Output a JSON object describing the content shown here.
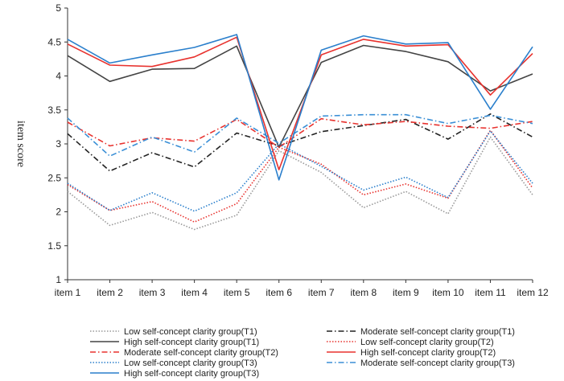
{
  "chart_data": {
    "type": "line",
    "title": "",
    "xlabel": "",
    "ylabel": "item score",
    "ylim": [
      1,
      5
    ],
    "yticks": [
      "1",
      "1.5",
      "2",
      "2.5",
      "3",
      "3.5",
      "4",
      "4.5",
      "5"
    ],
    "categories": [
      "item 1",
      "item 2",
      "item 3",
      "item 4",
      "item 5",
      "item 6",
      "item 7",
      "item 8",
      "item 9",
      "item 10",
      "item 11",
      "item 12"
    ],
    "grid": false,
    "legend_position": "bottom",
    "series": [
      {
        "name": "Low self-concept clarity group(T1)",
        "color": "#999999",
        "dash": "dotted",
        "values": [
          2.3,
          1.8,
          1.99,
          1.74,
          1.95,
          2.9,
          2.58,
          2.06,
          2.3,
          1.97,
          3.1,
          2.25
        ]
      },
      {
        "name": "Moderate self-concept clarity group(T1)",
        "color": "#222222",
        "dash": "dashdot",
        "values": [
          3.15,
          2.6,
          2.87,
          2.66,
          3.16,
          2.97,
          3.18,
          3.27,
          3.36,
          3.07,
          3.44,
          3.1
        ]
      },
      {
        "name": "High self-concept clarity group(T1)",
        "color": "#444444",
        "dash": "solid",
        "values": [
          4.3,
          3.92,
          4.1,
          4.11,
          4.44,
          2.95,
          4.2,
          4.45,
          4.36,
          4.21,
          3.78,
          4.03
        ]
      },
      {
        "name": "Low self-concept clarity group(T2)",
        "color": "#e8322e",
        "dash": "dotted",
        "values": [
          2.4,
          2.02,
          2.15,
          1.85,
          2.12,
          2.95,
          2.7,
          2.25,
          2.41,
          2.2,
          3.2,
          2.35
        ]
      },
      {
        "name": "Moderate self-concept clarity group(T2)",
        "color": "#e8322e",
        "dash": "dashdot",
        "values": [
          3.32,
          2.97,
          3.09,
          3.04,
          3.36,
          2.95,
          3.37,
          3.28,
          3.33,
          3.26,
          3.23,
          3.33
        ]
      },
      {
        "name": "High self-concept clarity group(T2)",
        "color": "#e8322e",
        "dash": "solid",
        "values": [
          4.47,
          4.16,
          4.14,
          4.28,
          4.57,
          2.62,
          4.31,
          4.54,
          4.44,
          4.46,
          3.72,
          4.33
        ]
      },
      {
        "name": "Low self-concept clarity group(T3)",
        "color": "#2a7fcc",
        "dash": "dotted",
        "values": [
          2.42,
          2.02,
          2.28,
          2.01,
          2.28,
          3.0,
          2.67,
          2.32,
          2.51,
          2.21,
          3.19,
          2.42
        ]
      },
      {
        "name": "Moderate self-concept clarity group(T3)",
        "color": "#3a8fd6",
        "dash": "dashdot",
        "values": [
          3.38,
          2.82,
          3.1,
          2.88,
          3.38,
          3.01,
          3.41,
          3.43,
          3.43,
          3.3,
          3.42,
          3.3
        ]
      },
      {
        "name": "High self-concept clarity group(T3)",
        "color": "#2a7fcc",
        "dash": "solid",
        "values": [
          4.54,
          4.19,
          4.31,
          4.42,
          4.61,
          2.47,
          4.38,
          4.59,
          4.47,
          4.49,
          3.51,
          4.43
        ]
      }
    ]
  }
}
